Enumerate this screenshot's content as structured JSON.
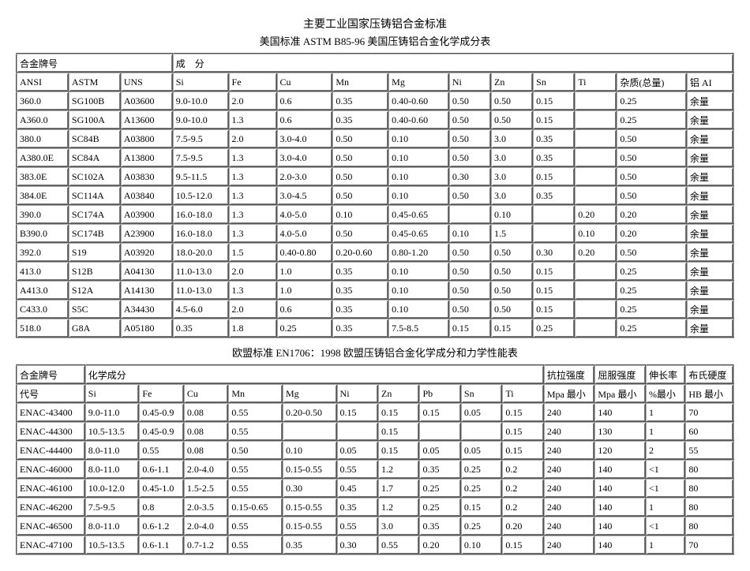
{
  "header": {
    "title": "主要工业国家压铸铝合金标准",
    "subtitle": "美国标准 ASTM B85-96 美国压铸铝合金化学成分表"
  },
  "table1": {
    "header1": {
      "alloy_label": "合金牌号",
      "comp_label": "成　分"
    },
    "columns": [
      "ANSI",
      "ASTM",
      "UNS",
      "Si",
      "Fe",
      "Cu",
      "Mn",
      "Mg",
      "Ni",
      "Zn",
      "Sn",
      "Ti",
      "杂质(总量)",
      "铝 AI"
    ],
    "rows": [
      [
        "360.0",
        "SG100B",
        "A03600",
        "9.0-10.0",
        "2.0",
        "0.6",
        "0.35",
        "0.40-0.60",
        "0.50",
        "0.50",
        "0.15",
        "",
        "0.25",
        "余量"
      ],
      [
        "A360.0",
        "SG100A",
        "A13600",
        "9.0-10.0",
        "1.3",
        "0.6",
        "0.35",
        "0.40-0.60",
        "0.50",
        "0.50",
        "0.15",
        "",
        "0.25",
        "余量"
      ],
      [
        "380.0",
        "SC84B",
        "A03800",
        "7.5-9.5",
        "2.0",
        "3.0-4.0",
        "0.50",
        "0.10",
        "0.50",
        "3.0",
        "0.35",
        "",
        "0.50",
        "余量"
      ],
      [
        "A380.0E",
        "SC84A",
        "A13800",
        "7.5-9.5",
        "1.3",
        "3.0-4.0",
        "0.50",
        "0.10",
        "0.50",
        "3.0",
        "0.35",
        "",
        "0.50",
        "余量"
      ],
      [
        "383.0E",
        "SC102A",
        "A03830",
        "9.5-11.5",
        "1.3",
        "2.0-3.0",
        "0.50",
        "0.10",
        "0.30",
        "3.0",
        "0.15",
        "",
        "0.50",
        "余量"
      ],
      [
        "384.0E",
        "SC114A",
        "A03840",
        "10.5-12.0",
        "1.3",
        "3.0-4.5",
        "0.50",
        "0.10",
        "0.50",
        "3.0",
        "0.35",
        "",
        "0.50",
        "余量"
      ],
      [
        "390.0",
        "SC174A",
        "A03900",
        "16.0-18.0",
        "1.3",
        "4.0-5.0",
        "0.10",
        "0.45-0.65",
        "",
        "0.10",
        "",
        "0.20",
        "0.20",
        "余量"
      ],
      [
        "B390.0",
        "SC174B",
        "A23900",
        "16.0-18.0",
        "1.3",
        "4.0-5.0",
        "0.50",
        "0.45-0.65",
        "0.10",
        "1.5",
        "",
        "0.10",
        "0.20",
        "余量"
      ],
      [
        "392.0",
        "S19",
        "A03920",
        "18.0-20.0",
        "1.5",
        "0.40-0.80",
        "0.20-0.60",
        "0.80-1.20",
        "0.50",
        "0.50",
        "0.30",
        "0.20",
        "0.50",
        "余量"
      ],
      [
        "413.0",
        "S12B",
        "A04130",
        "11.0-13.0",
        "2.0",
        "1.0",
        "0.35",
        "0.10",
        "0.50",
        "0.50",
        "0.15",
        "",
        "0.25",
        "余量"
      ],
      [
        "A413.0",
        "S12A",
        "A14130",
        "11.0-13.0",
        "1.3",
        "1.0",
        "0.35",
        "0.10",
        "0.50",
        "0.50",
        "0.15",
        "",
        "0.25",
        "余量"
      ],
      [
        "C433.0",
        "S5C",
        "A34430",
        "4.5-6.0",
        "2.0",
        "0.6",
        "0.35",
        "0.10",
        "0.50",
        "0.50",
        "0.15",
        "",
        "0.25",
        "余量"
      ],
      [
        "518.0",
        "G8A",
        "A05180",
        "0.35",
        "1.8",
        "0.25",
        "0.35",
        "7.5-8.5",
        "0.15",
        "0.15",
        "0.25",
        "",
        "0.25",
        "余量"
      ]
    ]
  },
  "midtitle": "欧盟标准 EN1706：1998 欧盟压铸铝合金化学成分和力学性能表",
  "table2": {
    "header1": {
      "alloy_label": "合金牌号",
      "chem_label": "化学成分",
      "tensile": "抗拉强度",
      "yield": "屈服强度",
      "elong": "伸长率",
      "hardness": "布氏硬度"
    },
    "header2": [
      "代号",
      "Si",
      "Fe",
      "Cu",
      "Mn",
      "Mg",
      "Ni",
      "Zn",
      "Pb",
      "Sn",
      "Ti",
      "Mpa 最小",
      "Mpa 最小",
      "%最小",
      "HB 最小"
    ],
    "rows": [
      [
        "ENAC-43400",
        "9.0-11.0",
        "0.45-0.9",
        "0.08",
        "0.55",
        "0.20-0.50",
        "0.15",
        "0.15",
        "0.15",
        "0.05",
        "0.15",
        "240",
        "140",
        "1",
        "70"
      ],
      [
        "ENAC-44300",
        "10.5-13.5",
        "0.45-0.9",
        "0.08",
        "0.55",
        "",
        "",
        "0.15",
        "",
        "",
        "0.15",
        "240",
        "130",
        "1",
        "60"
      ],
      [
        "ENAC-44400",
        "8.0-11.0",
        "0.55",
        "0.08",
        "0.50",
        "0.10",
        "0.05",
        "0.15",
        "0.05",
        "0.05",
        "0.15",
        "240",
        "120",
        "2",
        "55"
      ],
      [
        "ENAC-46000",
        "8.0-11.0",
        "0.6-1.1",
        "2.0-4.0",
        "0.55",
        "0.15-0.55",
        "0.55",
        "1.2",
        "0.35",
        "0.25",
        "0.2",
        "240",
        "140",
        "<1",
        "80"
      ],
      [
        "ENAC-46100",
        "10.0-12.0",
        "0.45-1.0",
        "1.5-2.5",
        "0.55",
        "0.30",
        "0.45",
        "1.7",
        "0.25",
        "0.25",
        "0.2",
        "240",
        "140",
        "<1",
        "80"
      ],
      [
        "ENAC-46200",
        "7.5-9.5",
        "0.8",
        "2.0-3.5",
        "0.15-0.65",
        "0.15-0.55",
        "0.35",
        "1.2",
        "0.25",
        "0.15",
        "0.2",
        "240",
        "140",
        "1",
        "80"
      ],
      [
        "ENAC-46500",
        "8.0-11.0",
        "0.6-1.2",
        "2.0-4.0",
        "0.55",
        "0.15-0.55",
        "0.55",
        "3.0",
        "0.35",
        "0.25",
        "0.20",
        "240",
        "140",
        "<1",
        "80"
      ],
      [
        "ENAC-47100",
        "10.5-13.5",
        "0.6-1.1",
        "0.7-1.2",
        "0.55",
        "0.35",
        "0.30",
        "0.55",
        "0.20",
        "0.10",
        "0.15",
        "240",
        "140",
        "1",
        "70"
      ]
    ]
  }
}
